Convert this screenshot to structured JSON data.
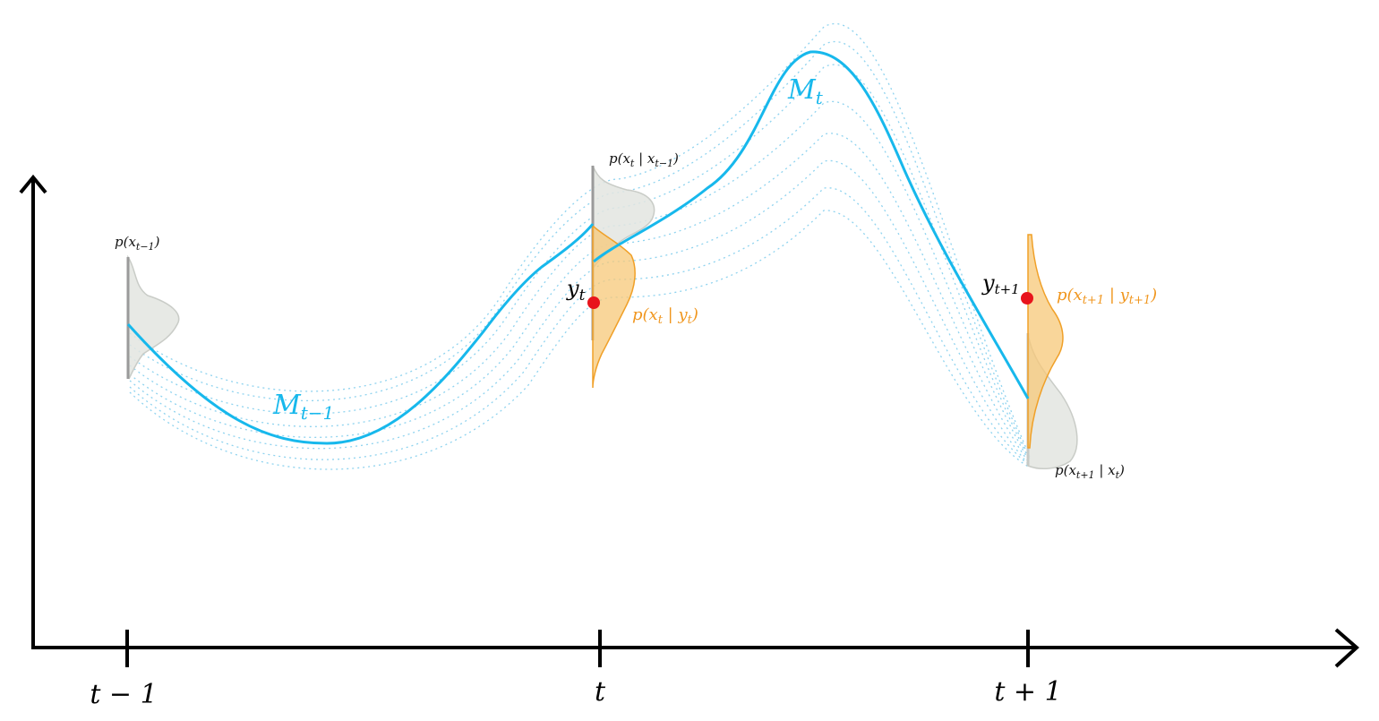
{
  "axis": {
    "ticks": [
      {
        "label": "t − 1"
      },
      {
        "label": "t"
      },
      {
        "label": "t + 1"
      }
    ]
  },
  "labels": {
    "mean_prev": {
      "base": "M",
      "sub": "t−1"
    },
    "mean_curr": {
      "base": "M",
      "sub": "t"
    },
    "obs_t": {
      "base": "y",
      "sub": "t"
    },
    "obs_t1": {
      "base": "y",
      "sub": "t+1"
    },
    "prior_prev": {
      "pre": "p(x",
      "sub": "t−1",
      "post": ")"
    },
    "pred_t": {
      "pre": "p(x",
      "sub": "t",
      "mid": " | x",
      "sub2": "t−1",
      "post": ")"
    },
    "post_t": {
      "pre": "p(x",
      "sub": "t",
      "mid": " | y",
      "sub2": "t",
      "post": ")"
    },
    "pred_t1": {
      "pre": "p(x",
      "sub": "t+1",
      "mid": " | x",
      "sub2": "t",
      "post": ")"
    },
    "post_t1": {
      "pre": "p(x",
      "sub": "t+1",
      "mid": " | y",
      "sub2": "t+1",
      "post": ")"
    }
  },
  "colors": {
    "mean_line": "#17b8ec",
    "sample_paths": "#8fd3ef",
    "prior_density": "#e3e5e1",
    "posterior_density": "#f7c878",
    "posterior_label": "#f0961e",
    "observation": "#e8141c",
    "axis": "#000000"
  }
}
